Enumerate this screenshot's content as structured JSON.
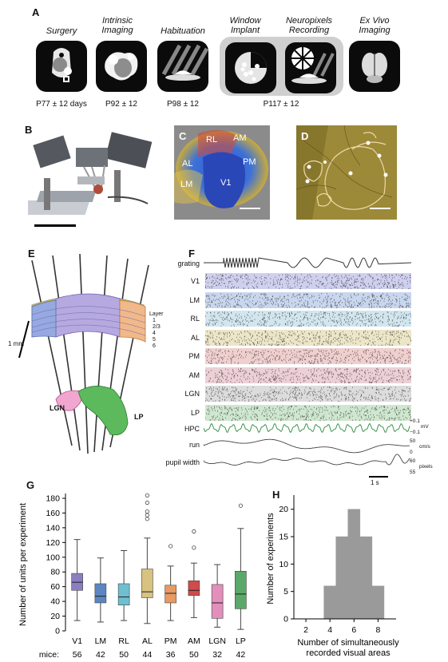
{
  "panels": {
    "A": "A",
    "B": "B",
    "C": "C",
    "D": "D",
    "E": "E",
    "F": "F",
    "G": "G",
    "H": "H"
  },
  "panel_a": {
    "steps": [
      {
        "title_line1": "Surgery",
        "title_line2": "",
        "age": "P77 ± 12 days"
      },
      {
        "title_line1": "Intrinsic",
        "title_line2": "Imaging",
        "age": "P92 ± 12"
      },
      {
        "title_line1": "Habituation",
        "title_line2": "",
        "age": "P98 ± 12"
      },
      {
        "title_line1": "Window",
        "title_line2": "Implant",
        "age": ""
      },
      {
        "title_line1": "Neuropixels",
        "title_line2": "Recording",
        "age": "P117 ± 12"
      },
      {
        "title_line1": "Ex Vivo",
        "title_line2": "Imaging",
        "age": ""
      }
    ]
  },
  "panel_c": {
    "areas": [
      "RL",
      "AM",
      "AL",
      "PM",
      "V1",
      "LM"
    ]
  },
  "panel_e": {
    "layer_title": "Layer",
    "layers": [
      "1",
      "2/3",
      "4",
      "5",
      "6"
    ],
    "scale": "1 mm",
    "regions": [
      "LGN",
      "LP"
    ]
  },
  "panel_f": {
    "stim_label": "grating",
    "rows": [
      "V1",
      "LM",
      "RL",
      "AL",
      "PM",
      "AM",
      "LGN",
      "LP"
    ],
    "row_colors": [
      "#cfd0ee",
      "#c8d6ee",
      "#d2e6ef",
      "#ece6c8",
      "#f0cfcf",
      "#ecd0d6",
      "#dcdcdc",
      "#cfe6cf"
    ],
    "hpc_label": "HPC",
    "run_label": "run",
    "pupil_label": "pupil width",
    "hpc_scale": [
      "+0.1",
      "mV",
      "−0.1"
    ],
    "run_scale": [
      "50",
      "cm/s",
      "0"
    ],
    "pupil_scale": [
      "60",
      "pixels",
      "55"
    ],
    "time_scale": "1 s"
  },
  "chart_data": [
    {
      "type": "box",
      "panel": "G",
      "ylabel": "Number of units per experiment",
      "ylim": [
        0,
        180
      ],
      "yticks": [
        0,
        20,
        40,
        60,
        80,
        100,
        120,
        140,
        160,
        180
      ],
      "categories": [
        "V1",
        "LM",
        "RL",
        "AL",
        "PM",
        "AM",
        "LGN",
        "LP"
      ],
      "colors": [
        "#8b7fc0",
        "#5b86c2",
        "#6fbfd0",
        "#d8c27f",
        "#e79a63",
        "#d14b4b",
        "#e28fbc",
        "#5aa86a"
      ],
      "boxes": [
        {
          "min": 14,
          "q1": 55,
          "median": 66,
          "q3": 78,
          "max": 124,
          "outliers": []
        },
        {
          "min": 12,
          "q1": 38,
          "median": 47,
          "q3": 64,
          "max": 99,
          "outliers": []
        },
        {
          "min": 14,
          "q1": 35,
          "median": 46,
          "q3": 64,
          "max": 109,
          "outliers": []
        },
        {
          "min": 10,
          "q1": 45,
          "median": 53,
          "q3": 84,
          "max": 126,
          "outliers": [
            152,
            157,
            162,
            174,
            184
          ]
        },
        {
          "min": 14,
          "q1": 38,
          "median": 51,
          "q3": 62,
          "max": 88,
          "outliers": [
            115
          ]
        },
        {
          "min": 18,
          "q1": 48,
          "median": 55,
          "q3": 68,
          "max": 92,
          "outliers": [
            113,
            135
          ]
        },
        {
          "min": 5,
          "q1": 17,
          "median": 38,
          "q3": 63,
          "max": 90,
          "outliers": []
        },
        {
          "min": 2,
          "q1": 30,
          "median": 50,
          "q3": 81,
          "max": 139,
          "outliers": [
            170
          ]
        }
      ],
      "mice_label": "mice:",
      "mice": [
        "56",
        "42",
        "50",
        "44",
        "36",
        "50",
        "32",
        "42"
      ]
    },
    {
      "type": "histogram",
      "panel": "H",
      "xlabel": "Number of simultaneously recorded visual areas",
      "ylabel": "Number of experiments",
      "xlim": [
        1,
        9.5
      ],
      "ylim": [
        0,
        22
      ],
      "xticks": [
        2,
        4,
        6,
        8
      ],
      "yticks": [
        0,
        5,
        10,
        15,
        20
      ],
      "bins": [
        {
          "x": 4,
          "count": 6
        },
        {
          "x": 5,
          "count": 15
        },
        {
          "x": 6,
          "count": 20
        },
        {
          "x": 7,
          "count": 15
        },
        {
          "x": 8,
          "count": 6
        }
      ],
      "color": "#9a9a9a"
    }
  ]
}
